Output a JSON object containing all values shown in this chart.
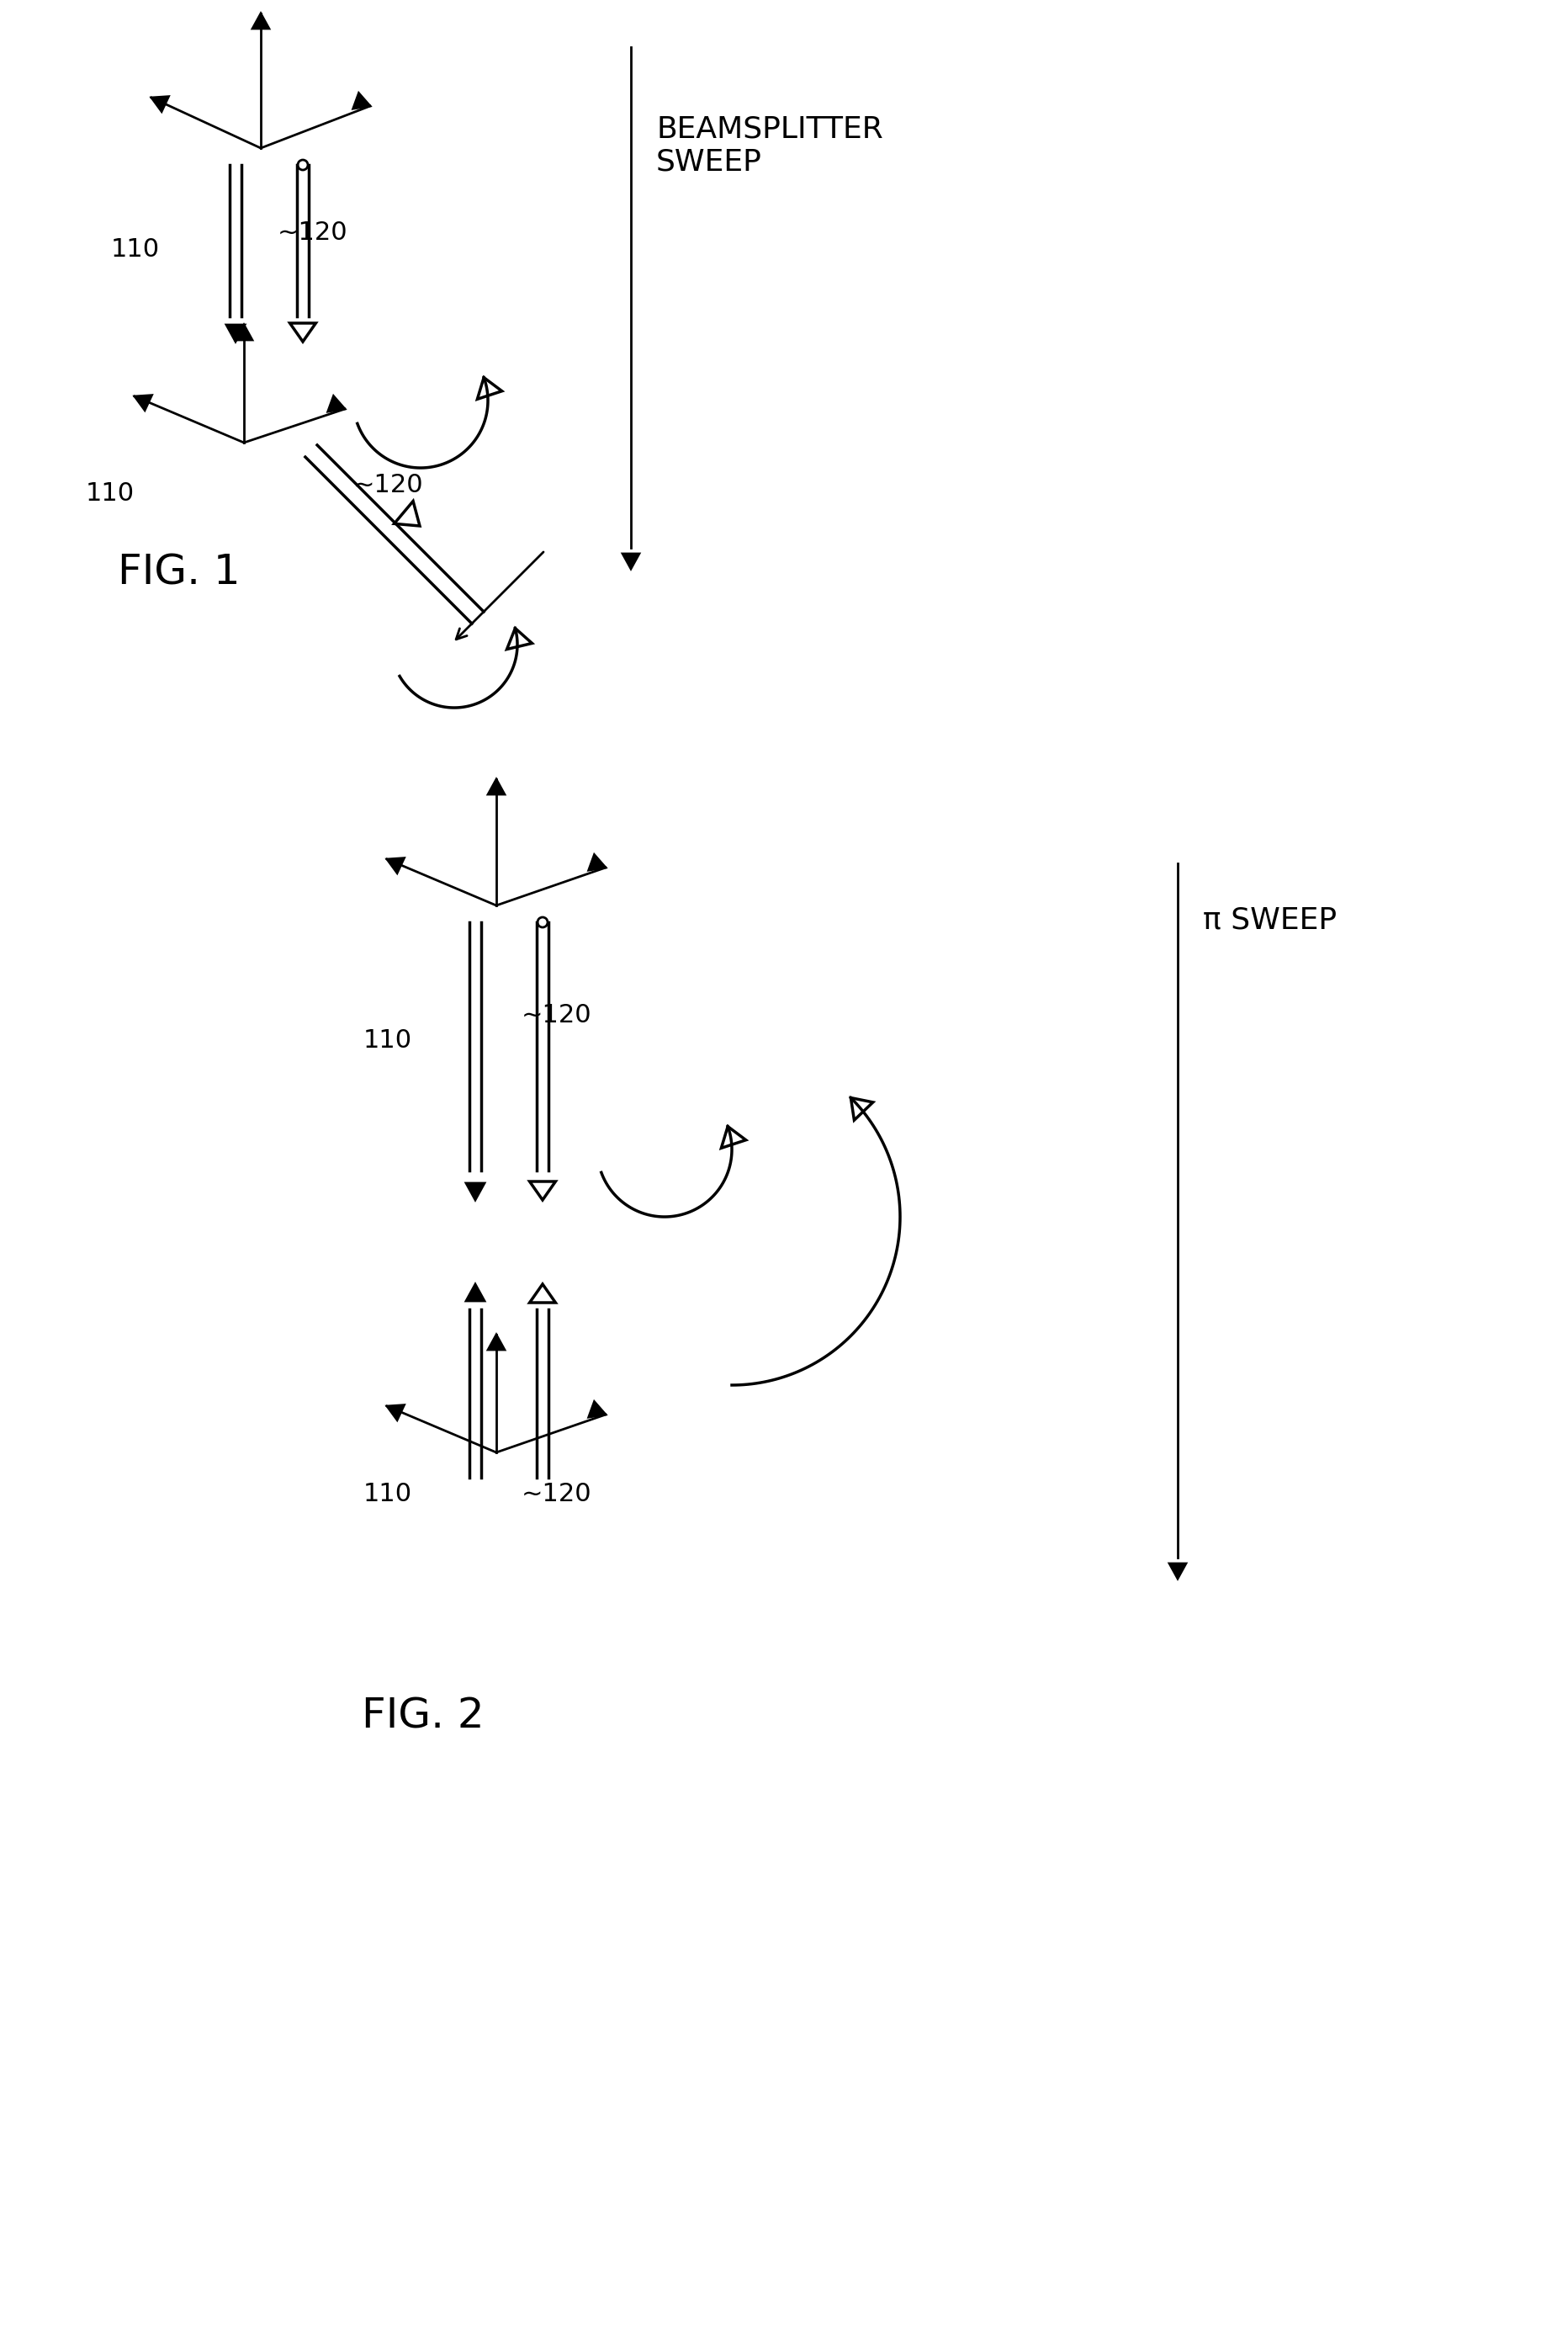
{
  "bg_color": "#ffffff",
  "line_color": "#000000",
  "fig1_label": "FIG. 1",
  "fig2_label": "FIG. 2",
  "beamsplitter_sweep_label": "BEAMSPLITTER\nSWEEP",
  "pi_sweep_label": "π SWEEP",
  "label_110": "110",
  "label_120": "120",
  "arrow_lw": 2.0,
  "thick_arrow_lw": 3.5,
  "panel_lw": 2.5
}
